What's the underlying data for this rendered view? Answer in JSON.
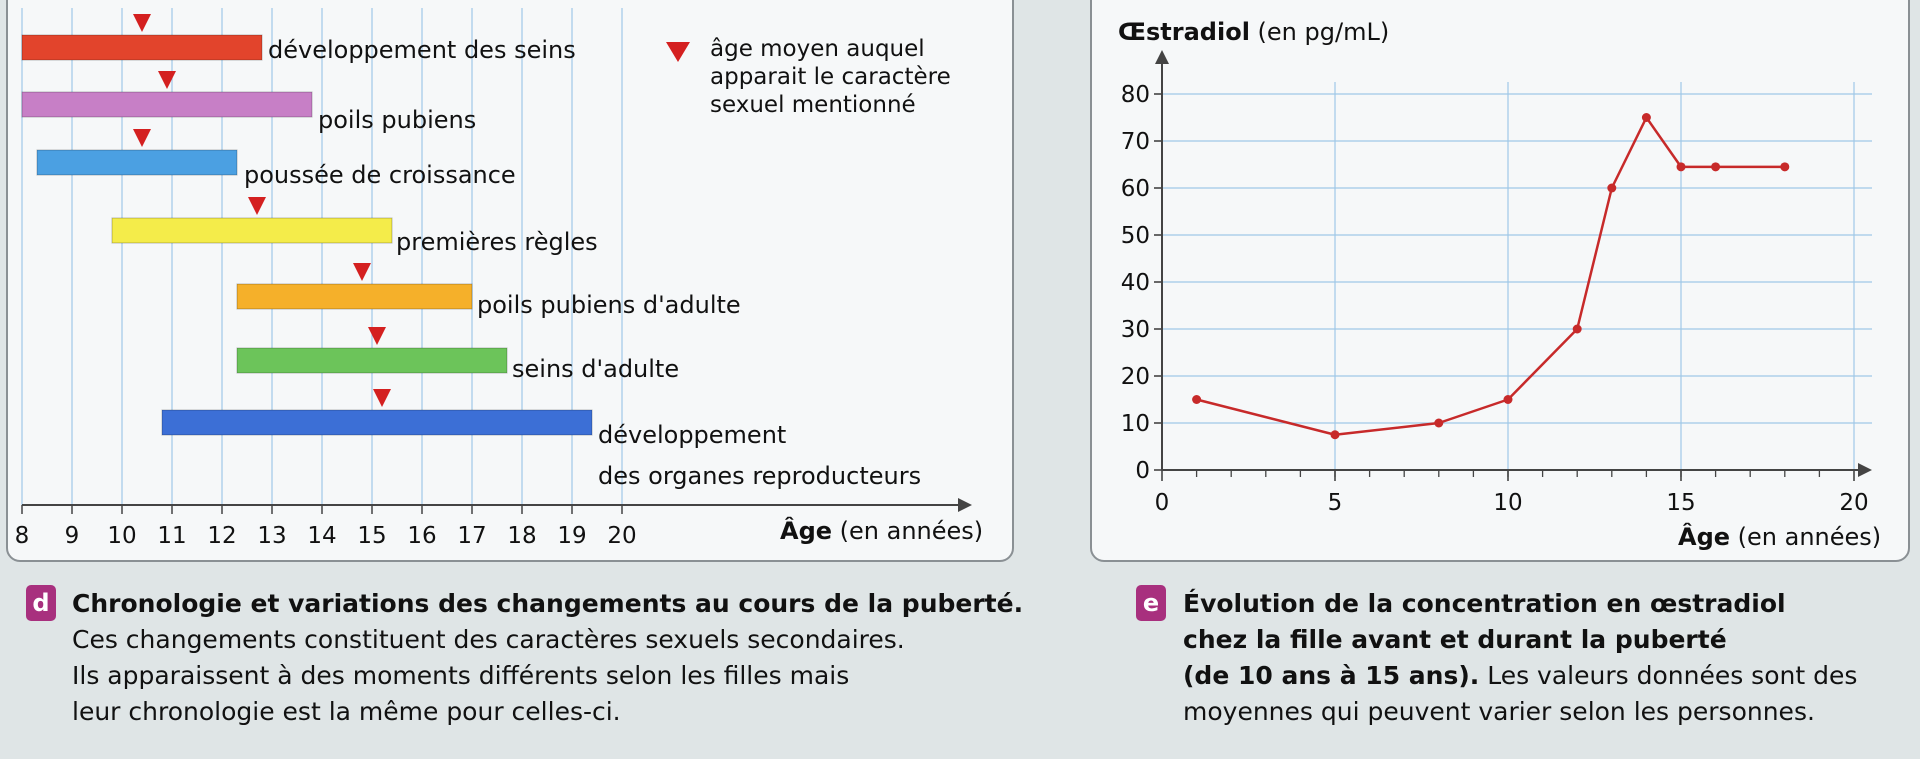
{
  "panel_d": {
    "letter": "d",
    "caption_title": "Chronologie et variations des changements au cours de la puberté.",
    "caption_lines": [
      "Ces changements constituent des caractères sexuels secondaires.",
      "Ils apparaissent à des moments différents selon les filles mais",
      "leur chronologie est la même pour celles-ci."
    ],
    "legend_lines": [
      "âge moyen auquel",
      "apparait le caractère",
      "sexuel mentionné"
    ]
  },
  "panel_e": {
    "letter": "e",
    "caption_bold_lines": [
      "Évolution de la concentration en œstradiol",
      "chez la fille avant et durant la puberté",
      "(de 10 ans à 15 ans)."
    ],
    "caption_rest_inline": " Les valeurs données sont des",
    "caption_rest_line": "moyennes qui peuvent varier selon les personnes."
  },
  "colors": {
    "red": "#e2442c",
    "violet": "#c77fc6",
    "blue": "#4ba0e2",
    "yellow": "#f4ec4a",
    "orange": "#f5b02a",
    "green": "#6cc45a",
    "dark_blue": "#3c6fd6",
    "marker": "#d42020",
    "curve": "#c72a2a",
    "grid": "#9fc8e8",
    "accent": "#a8307e"
  },
  "chart_data": [
    {
      "type": "bar",
      "subtype": "horizontal-range",
      "xlabel_bold": "Âge",
      "xlabel_rest": " (en années)",
      "xticks": [
        8,
        9,
        10,
        11,
        12,
        13,
        14,
        15,
        16,
        17,
        18,
        19,
        20
      ],
      "xlim": [
        8,
        20
      ],
      "grid": true,
      "series": [
        {
          "name": "développement des seins",
          "start": 8,
          "end": 12.8,
          "marker": 10.4,
          "color": "red"
        },
        {
          "name": "poils pubiens",
          "start": 8,
          "end": 13.8,
          "marker": 10.9,
          "color": "violet"
        },
        {
          "name": "poussée de croissance",
          "start": 8.3,
          "end": 12.3,
          "marker": 10.4,
          "color": "blue"
        },
        {
          "name": "premières règles",
          "start": 9.8,
          "end": 15.4,
          "marker": 12.7,
          "color": "yellow"
        },
        {
          "name": "poils pubiens d'adulte",
          "start": 12.3,
          "end": 17,
          "marker": 14.8,
          "color": "orange"
        },
        {
          "name": "seins d'adulte",
          "start": 12.3,
          "end": 17.7,
          "marker": 15.1,
          "color": "green"
        },
        {
          "name": "développement\ndes organes reproducteurs",
          "start": 10.8,
          "end": 19.4,
          "marker": 15.2,
          "color": "dark_blue"
        }
      ]
    },
    {
      "type": "line",
      "ylabel_bold": "Œstradiol",
      "ylabel_rest": " (en pg/mL)",
      "xlabel_bold": "Âge",
      "xlabel_rest": " (en années)",
      "xlim": [
        0,
        20
      ],
      "ylim": [
        0,
        80
      ],
      "xticks": [
        0,
        5,
        10,
        15,
        20
      ],
      "yticks": [
        0,
        10,
        20,
        30,
        40,
        50,
        60,
        70,
        80
      ],
      "grid": true,
      "series": [
        {
          "x": [
            1,
            5,
            8,
            10,
            12,
            13,
            14,
            15,
            16,
            18
          ],
          "y": [
            15,
            7.5,
            10,
            15,
            30,
            60,
            75,
            64.5,
            64.5,
            64.5
          ]
        }
      ]
    }
  ]
}
